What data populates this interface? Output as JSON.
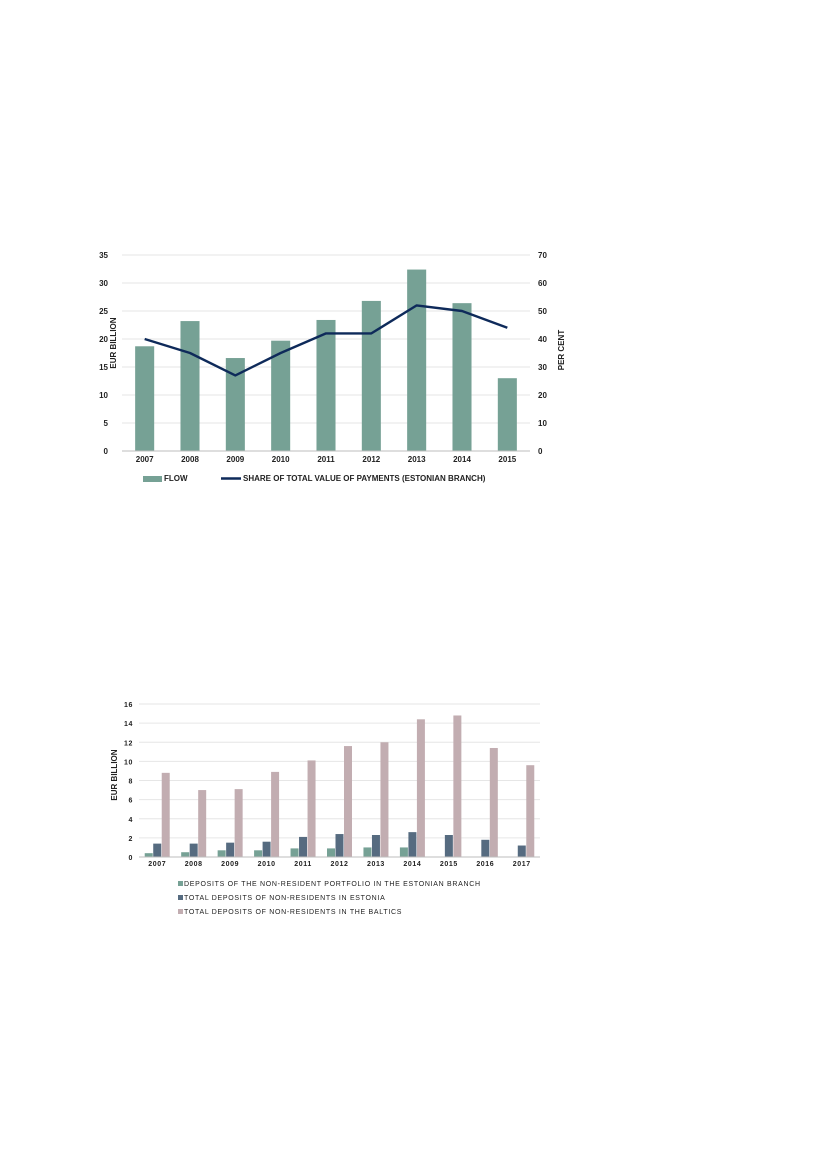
{
  "chart_data": [
    {
      "type": "bar+line",
      "title": "",
      "categories": [
        "2007",
        "2008",
        "2009",
        "2010",
        "2011",
        "2012",
        "2013",
        "2014",
        "2015"
      ],
      "series": [
        {
          "name": "FLOW",
          "type": "bar",
          "axis": "left",
          "color": "#76a195",
          "values": [
            18.7,
            23.2,
            16.6,
            19.7,
            23.4,
            26.8,
            32.4,
            26.4,
            13.0
          ]
        },
        {
          "name": "SHARE OF TOTAL VALUE OF PAYMENTS (ESTONIAN BRANCH)",
          "type": "line",
          "axis": "right",
          "color": "#0e2a5a",
          "values": [
            40,
            35,
            27,
            35,
            42,
            42,
            52,
            50,
            44
          ]
        }
      ],
      "ylabel": "EUR BILLION",
      "y2label": "PER CENT",
      "ylim": [
        0,
        35
      ],
      "y2lim": [
        0,
        70
      ],
      "yticks": [
        "0",
        "5",
        "10",
        "15",
        "20",
        "25",
        "30",
        "35"
      ],
      "y2ticks": [
        "0",
        "10",
        "20",
        "30",
        "40",
        "50",
        "60",
        "70"
      ],
      "grid": true,
      "legend_position": "bottom"
    },
    {
      "type": "bar",
      "title": "",
      "categories": [
        "2007",
        "2008",
        "2009",
        "2010",
        "2011",
        "2012",
        "2013",
        "2014",
        "2015",
        "2016",
        "2017"
      ],
      "series": [
        {
          "name": "DEPOSITS OF THE NON-RESIDENT PORTFOLIO IN THE ESTONIAN BRANCH",
          "color": "#76a195",
          "values": [
            0.4,
            0.5,
            0.7,
            0.7,
            0.9,
            0.9,
            1.0,
            1.0,
            null,
            null,
            null
          ]
        },
        {
          "name": "TOTAL DEPOSITS OF NON-RESIDENTS IN ESTONIA",
          "color": "#566b80",
          "values": [
            1.4,
            1.4,
            1.5,
            1.6,
            2.1,
            2.4,
            2.3,
            2.6,
            2.3,
            1.8,
            1.2
          ]
        },
        {
          "name": "TOTAL DEPOSITS OF NON-RESIDENTS IN THE BALTICS",
          "color": "#c2adb1",
          "values": [
            8.8,
            7.0,
            7.1,
            8.9,
            10.1,
            11.6,
            12.0,
            14.4,
            14.8,
            11.4,
            9.6
          ]
        }
      ],
      "ylabel": "EUR BILLION",
      "ylim": [
        0,
        16
      ],
      "yticks": [
        "0",
        "2",
        "4",
        "6",
        "8",
        "10",
        "12",
        "14",
        "16"
      ],
      "grid": true,
      "legend_position": "bottom"
    }
  ]
}
